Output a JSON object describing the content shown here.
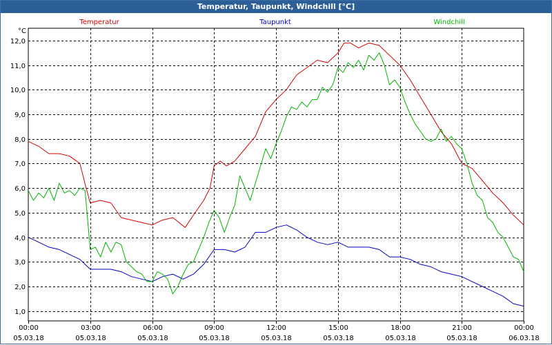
{
  "window": {
    "title": "Temperatur, Taupunkt, Windchill [°C]"
  },
  "colors": {
    "title_bar": "#2b5f96",
    "temperature": "#d40000",
    "dewpoint": "#0000c8",
    "windchill": "#00b400",
    "grid": "#000000"
  },
  "chart_data": {
    "type": "line",
    "title": "Temperatur, Taupunkt, Windchill [°C]",
    "ylabel": "°C",
    "ylim": [
      0.6,
      12.5
    ],
    "xlim": [
      0,
      24
    ],
    "grid": true,
    "legend_position": "top",
    "yticks": [
      1.0,
      2.0,
      3.0,
      4.0,
      5.0,
      6.0,
      7.0,
      8.0,
      9.0,
      10.0,
      11.0,
      12.0
    ],
    "ytick_labels": [
      "1,0",
      "2,0",
      "3,0",
      "4,0",
      "5,0",
      "6,0",
      "7,0",
      "8,0",
      "9,0",
      "10,0",
      "11,0",
      "12,0"
    ],
    "xticks": [
      {
        "x": 0,
        "time": "00:00",
        "date": "05.03.18"
      },
      {
        "x": 3,
        "time": "03:00",
        "date": "05.03.18"
      },
      {
        "x": 6,
        "time": "06:00",
        "date": "05.03.18"
      },
      {
        "x": 9,
        "time": "09:00",
        "date": "05.03.18"
      },
      {
        "x": 12,
        "time": "12:00",
        "date": "05.03.18"
      },
      {
        "x": 15,
        "time": "15:00",
        "date": "05.03.18"
      },
      {
        "x": 18,
        "time": "18:00",
        "date": "05.03.18"
      },
      {
        "x": 21,
        "time": "21:00",
        "date": "05.03.18"
      },
      {
        "x": 24,
        "time": "00:00",
        "date": "06.03.18"
      }
    ],
    "series": [
      {
        "name": "Temperatur",
        "color": "#d40000",
        "x": [
          0,
          0.5,
          1,
          1.5,
          2,
          2.5,
          2.8,
          3,
          3.5,
          4,
          4.5,
          5,
          5.5,
          6,
          6.5,
          7,
          7.3,
          7.6,
          8,
          8.5,
          8.8,
          9,
          9.3,
          9.6,
          10,
          10.5,
          11,
          11.5,
          12,
          12.5,
          13,
          13.5,
          14,
          14.5,
          15,
          15.3,
          15.6,
          16,
          16.5,
          17,
          17.5,
          18,
          18.5,
          19,
          19.5,
          20,
          20.5,
          21,
          21.5,
          22,
          22.5,
          23,
          23.5,
          24
        ],
        "values": [
          7.9,
          7.7,
          7.4,
          7.4,
          7.3,
          7.0,
          6.0,
          5.4,
          5.5,
          5.4,
          4.8,
          4.7,
          4.6,
          4.5,
          4.7,
          4.8,
          4.6,
          4.4,
          4.9,
          5.5,
          6.0,
          6.9,
          7.1,
          6.9,
          7.1,
          7.6,
          8.1,
          9.1,
          9.6,
          10.0,
          10.6,
          10.9,
          11.2,
          11.1,
          11.5,
          11.9,
          11.9,
          11.7,
          11.9,
          11.8,
          11.4,
          11.0,
          10.4,
          9.7,
          9.0,
          8.3,
          7.8,
          7.0,
          6.8,
          6.3,
          5.8,
          5.4,
          4.9,
          4.5
        ]
      },
      {
        "name": "Taupunkt",
        "color": "#0000c8",
        "x": [
          0,
          0.5,
          1,
          1.5,
          2,
          2.5,
          3,
          3.5,
          4,
          4.5,
          5,
          5.5,
          6,
          6.5,
          7,
          7.5,
          8,
          8.5,
          9,
          9.5,
          10,
          10.5,
          11,
          11.5,
          12,
          12.5,
          13,
          13.5,
          14,
          14.5,
          15,
          15.5,
          16,
          16.5,
          17,
          17.5,
          18,
          18.5,
          19,
          19.5,
          20,
          20.5,
          21,
          21.5,
          22,
          22.5,
          23,
          23.5,
          24
        ],
        "values": [
          4.0,
          3.8,
          3.6,
          3.5,
          3.3,
          3.1,
          2.7,
          2.7,
          2.7,
          2.6,
          2.4,
          2.3,
          2.2,
          2.4,
          2.5,
          2.3,
          2.5,
          2.9,
          3.5,
          3.5,
          3.4,
          3.6,
          4.2,
          4.2,
          4.4,
          4.5,
          4.3,
          4.0,
          3.8,
          3.7,
          3.8,
          3.6,
          3.6,
          3.6,
          3.5,
          3.2,
          3.2,
          3.1,
          2.9,
          2.8,
          2.6,
          2.5,
          2.4,
          2.2,
          2.0,
          1.8,
          1.6,
          1.3,
          1.2
        ]
      },
      {
        "name": "Windchill",
        "color": "#00b400",
        "x": [
          0,
          0.25,
          0.5,
          0.75,
          1,
          1.25,
          1.5,
          1.75,
          2,
          2.25,
          2.5,
          2.75,
          3,
          3.25,
          3.5,
          3.75,
          4,
          4.25,
          4.5,
          4.75,
          5,
          5.25,
          5.5,
          5.75,
          6,
          6.25,
          6.5,
          6.75,
          7,
          7.25,
          7.5,
          7.75,
          8,
          8.25,
          8.5,
          8.75,
          9,
          9.25,
          9.5,
          9.75,
          10,
          10.25,
          10.5,
          10.75,
          11,
          11.25,
          11.5,
          11.75,
          12,
          12.25,
          12.5,
          12.75,
          13,
          13.25,
          13.5,
          13.75,
          14,
          14.25,
          14.5,
          14.75,
          15,
          15.25,
          15.5,
          15.75,
          16,
          16.25,
          16.5,
          16.75,
          17,
          17.25,
          17.5,
          17.75,
          18,
          18.25,
          18.5,
          18.75,
          19,
          19.25,
          19.5,
          19.75,
          20,
          20.25,
          20.5,
          20.75,
          21,
          21.25,
          21.5,
          21.75,
          22,
          22.25,
          22.5,
          22.75,
          23,
          23.25,
          23.5,
          23.75,
          24
        ],
        "values": [
          5.9,
          5.5,
          5.8,
          5.6,
          6.0,
          5.5,
          6.2,
          5.8,
          5.9,
          5.7,
          6.0,
          5.9,
          3.5,
          3.6,
          3.2,
          3.8,
          3.4,
          3.8,
          3.7,
          3.0,
          2.8,
          2.6,
          2.5,
          2.2,
          2.2,
          2.6,
          2.5,
          2.3,
          1.7,
          2.0,
          2.5,
          2.9,
          3.0,
          3.5,
          4.0,
          4.6,
          5.1,
          4.8,
          4.2,
          4.8,
          5.3,
          6.5,
          6.0,
          5.5,
          6.2,
          6.9,
          7.6,
          7.2,
          7.8,
          8.3,
          8.9,
          9.3,
          9.2,
          9.5,
          9.3,
          9.6,
          9.6,
          10.1,
          9.9,
          10.2,
          10.9,
          10.7,
          11.1,
          10.9,
          11.2,
          10.8,
          11.4,
          11.2,
          11.5,
          11.0,
          10.2,
          10.4,
          10.1,
          9.5,
          9.0,
          8.6,
          8.3,
          8.0,
          7.9,
          8.0,
          8.4,
          7.9,
          8.1,
          7.8,
          7.6,
          7.0,
          6.2,
          5.7,
          5.5,
          4.8,
          4.6,
          4.2,
          4.0,
          3.6,
          3.2,
          3.1,
          2.6
        ]
      }
    ]
  }
}
